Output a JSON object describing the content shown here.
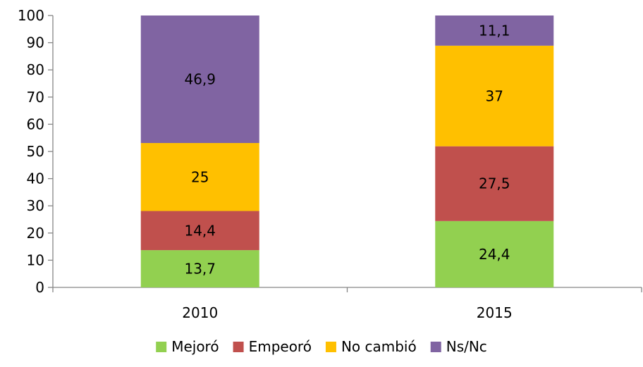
{
  "chart_data": {
    "type": "bar",
    "stacked": true,
    "categories": [
      "2010",
      "2015"
    ],
    "series": [
      {
        "name": "Mejoró",
        "color": "#92d050",
        "values": [
          13.7,
          24.4
        ],
        "labels": [
          "13,7",
          "24,4"
        ]
      },
      {
        "name": "Empeoró",
        "color": "#c0504d",
        "values": [
          14.4,
          27.5
        ],
        "labels": [
          "14,4",
          "27,5"
        ]
      },
      {
        "name": "No cambió",
        "color": "#ffc000",
        "values": [
          25,
          37
        ],
        "labels": [
          "25",
          "37"
        ]
      },
      {
        "name": "Ns/Nc",
        "color": "#8064a2",
        "values": [
          46.9,
          11.1
        ],
        "labels": [
          "46,9",
          "11,1"
        ]
      }
    ],
    "title": "",
    "xlabel": "",
    "ylabel": "",
    "ylim": [
      0,
      100
    ],
    "yticks": [
      0,
      10,
      20,
      30,
      40,
      50,
      60,
      70,
      80,
      90,
      100
    ],
    "grid": false,
    "legend": "bottom"
  }
}
